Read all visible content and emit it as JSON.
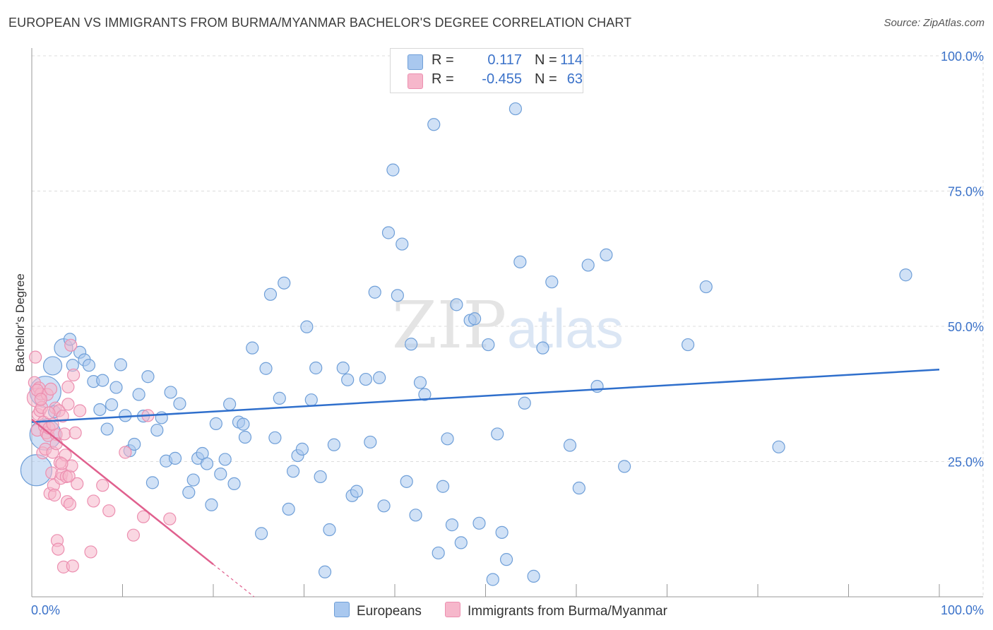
{
  "title": "EUROPEAN VS IMMIGRANTS FROM BURMA/MYANMAR BACHELOR'S DEGREE CORRELATION CHART",
  "source": "Source: ZipAtlas.com",
  "watermark": {
    "part1": "ZIP",
    "part2": "atlas"
  },
  "colors": {
    "blue_fill": "#a9c8ef",
    "blue_stroke": "#6f9fd8",
    "blue_line": "#2f6fcc",
    "pink_fill": "#f6b7cb",
    "pink_stroke": "#ec8fb0",
    "pink_line": "#e0608e",
    "tick_label": "#3b72c9",
    "grid": "#dcdcdc"
  },
  "legend": {
    "rows": [
      {
        "label": "R =",
        "r": "0.117",
        "n_label": "N =",
        "n": "114",
        "color": "blue"
      },
      {
        "label": "R =",
        "r": "-0.455",
        "n_label": "N =",
        "n": "63",
        "color": "pink"
      }
    ]
  },
  "bottom_legend": {
    "series1": "Europeans",
    "series2": "Immigrants from Burma/Myanmar"
  },
  "chart_data": {
    "type": "scatter",
    "title": "EUROPEAN VS IMMIGRANTS FROM BURMA/MYANMAR BACHELOR'S DEGREE CORRELATION CHART",
    "xlabel": "",
    "ylabel": "Bachelor's Degree",
    "xlim": [
      0,
      100
    ],
    "ylim": [
      0,
      100
    ],
    "x_tick_labels": [
      "0.0%",
      "100.0%"
    ],
    "y_tick_labels": [
      "25.0%",
      "50.0%",
      "75.0%",
      "100.0%"
    ],
    "y_ticks": [
      25,
      50,
      75,
      100
    ],
    "grid": true,
    "series": [
      {
        "name": "Europeans",
        "color": "blue",
        "R": 0.117,
        "N": 114,
        "trend": {
          "x": [
            0,
            100
          ],
          "y": [
            32.3,
            42.0
          ]
        },
        "points": [
          [
            0.5,
            23.4,
            3
          ],
          [
            1.5,
            30.0,
            3
          ],
          [
            1.5,
            37.9,
            3
          ],
          [
            2.3,
            42.7,
            2
          ],
          [
            2.5,
            34.2,
            1
          ],
          [
            3.5,
            46.0,
            2
          ],
          [
            4.2,
            47.6,
            1
          ],
          [
            4.5,
            42.8,
            1
          ],
          [
            5.3,
            45.2,
            1
          ],
          [
            5.8,
            43.8,
            1
          ],
          [
            6.3,
            42.8,
            1
          ],
          [
            6.8,
            39.8,
            1
          ],
          [
            7.5,
            34.6,
            1
          ],
          [
            7.8,
            40.0,
            1
          ],
          [
            8.3,
            31.0,
            1
          ],
          [
            8.8,
            35.5,
            1
          ],
          [
            9.3,
            38.7,
            1
          ],
          [
            9.8,
            42.9,
            1
          ],
          [
            10.3,
            33.5,
            1
          ],
          [
            10.8,
            27.0,
            1
          ],
          [
            11.3,
            28.2,
            1
          ],
          [
            11.8,
            37.4,
            1
          ],
          [
            12.3,
            33.4,
            1
          ],
          [
            12.8,
            40.7,
            1
          ],
          [
            13.3,
            21.1,
            1
          ],
          [
            13.8,
            30.8,
            1
          ],
          [
            14.3,
            33.1,
            1
          ],
          [
            14.8,
            25.1,
            1
          ],
          [
            15.3,
            37.8,
            1
          ],
          [
            15.8,
            25.6,
            1
          ],
          [
            16.3,
            35.7,
            1
          ],
          [
            17.3,
            19.3,
            1
          ],
          [
            17.8,
            21.6,
            1
          ],
          [
            18.3,
            25.6,
            1
          ],
          [
            18.8,
            26.5,
            1
          ],
          [
            19.3,
            24.6,
            1
          ],
          [
            19.8,
            17.0,
            1
          ],
          [
            20.3,
            32.0,
            1
          ],
          [
            20.8,
            22.7,
            1
          ],
          [
            21.3,
            25.4,
            1
          ],
          [
            21.8,
            35.6,
            1
          ],
          [
            22.3,
            20.9,
            1
          ],
          [
            22.8,
            32.3,
            1
          ],
          [
            23.3,
            31.9,
            1
          ],
          [
            23.5,
            29.5,
            1
          ],
          [
            24.3,
            46.0,
            1
          ],
          [
            25.3,
            11.7,
            1
          ],
          [
            25.8,
            42.2,
            1
          ],
          [
            26.3,
            55.9,
            1
          ],
          [
            26.8,
            29.4,
            1
          ],
          [
            27.3,
            36.7,
            1
          ],
          [
            27.8,
            58.0,
            1
          ],
          [
            28.3,
            16.2,
            1
          ],
          [
            28.8,
            23.2,
            1
          ],
          [
            29.3,
            26.1,
            1
          ],
          [
            29.8,
            27.3,
            1
          ],
          [
            30.3,
            49.9,
            1
          ],
          [
            30.8,
            36.4,
            1
          ],
          [
            31.3,
            42.3,
            1
          ],
          [
            31.8,
            22.2,
            1
          ],
          [
            32.3,
            4.6,
            1
          ],
          [
            32.8,
            12.4,
            1
          ],
          [
            33.3,
            28.1,
            1
          ],
          [
            34.3,
            42.3,
            1
          ],
          [
            34.8,
            40.1,
            1
          ],
          [
            35.3,
            18.7,
            1
          ],
          [
            35.8,
            19.5,
            1
          ],
          [
            36.8,
            40.2,
            1
          ],
          [
            37.3,
            28.6,
            1
          ],
          [
            37.8,
            56.3,
            1
          ],
          [
            38.3,
            40.5,
            1
          ],
          [
            38.8,
            16.8,
            1
          ],
          [
            39.3,
            67.3,
            1
          ],
          [
            39.8,
            78.9,
            1
          ],
          [
            40.3,
            55.7,
            1
          ],
          [
            40.8,
            65.2,
            1
          ],
          [
            41.3,
            21.3,
            1
          ],
          [
            41.8,
            46.7,
            1
          ],
          [
            42.3,
            15.1,
            1
          ],
          [
            42.8,
            39.6,
            1
          ],
          [
            43.3,
            37.4,
            1
          ],
          [
            44.3,
            87.3,
            1
          ],
          [
            44.8,
            8.1,
            1
          ],
          [
            45.3,
            20.4,
            1
          ],
          [
            45.8,
            29.2,
            1
          ],
          [
            46.3,
            13.3,
            1
          ],
          [
            46.8,
            54.0,
            1
          ],
          [
            47.3,
            10.0,
            1
          ],
          [
            48.3,
            51.1,
            1
          ],
          [
            48.8,
            51.4,
            1
          ],
          [
            49.3,
            13.6,
            1
          ],
          [
            50.3,
            46.6,
            1
          ],
          [
            50.8,
            3.2,
            1
          ],
          [
            51.3,
            30.1,
            1
          ],
          [
            51.8,
            11.9,
            1
          ],
          [
            52.3,
            6.9,
            1
          ],
          [
            53.3,
            90.2,
            1
          ],
          [
            53.8,
            61.9,
            1
          ],
          [
            54.3,
            35.8,
            1
          ],
          [
            55.3,
            3.8,
            1
          ],
          [
            56.3,
            46.0,
            1
          ],
          [
            57.3,
            58.2,
            1
          ],
          [
            59.3,
            28.0,
            1
          ],
          [
            60.3,
            20.1,
            1
          ],
          [
            61.3,
            61.3,
            1
          ],
          [
            62.3,
            38.9,
            1
          ],
          [
            63.3,
            63.2,
            1
          ],
          [
            65.3,
            24.1,
            1
          ],
          [
            72.3,
            46.6,
            1
          ],
          [
            74.3,
            57.3,
            1
          ],
          [
            82.3,
            27.7,
            1
          ],
          [
            96.3,
            59.5,
            1
          ]
        ]
      },
      {
        "name": "Immigrants from Burma/Myanmar",
        "color": "pink",
        "R": -0.455,
        "N": 63,
        "trend": {
          "x": [
            0,
            20
          ],
          "y": [
            32.8,
            6.0
          ],
          "dashed_to": {
            "x": 24.5,
            "y": 0
          }
        },
        "points": [
          [
            0.3,
            39.6,
            1
          ],
          [
            0.4,
            44.3,
            1
          ],
          [
            0.5,
            36.8,
            2
          ],
          [
            0.6,
            30.8,
            1
          ],
          [
            0.7,
            33.7,
            1
          ],
          [
            0.8,
            38.6,
            1
          ],
          [
            0.9,
            34.4,
            1
          ],
          [
            1.0,
            37.5,
            1
          ],
          [
            1.1,
            35.0,
            1
          ],
          [
            1.2,
            26.6,
            1
          ],
          [
            1.3,
            32.3,
            1
          ],
          [
            1.4,
            31.5,
            1
          ],
          [
            1.5,
            27.3,
            1
          ],
          [
            1.6,
            30.3,
            1
          ],
          [
            1.7,
            37.4,
            1
          ],
          [
            1.8,
            29.8,
            1
          ],
          [
            1.9,
            31.2,
            1
          ],
          [
            2.0,
            19.1,
            1
          ],
          [
            2.1,
            38.4,
            1
          ],
          [
            2.2,
            22.9,
            1
          ],
          [
            2.3,
            26.7,
            1
          ],
          [
            2.4,
            20.6,
            1
          ],
          [
            2.5,
            18.8,
            1
          ],
          [
            2.6,
            34.9,
            1
          ],
          [
            2.7,
            30.0,
            1
          ],
          [
            2.8,
            10.4,
            1
          ],
          [
            2.9,
            8.8,
            1
          ],
          [
            3.0,
            34.4,
            1
          ],
          [
            3.1,
            24.8,
            1
          ],
          [
            3.2,
            21.9,
            1
          ],
          [
            3.3,
            22.7,
            1
          ],
          [
            3.4,
            33.4,
            1
          ],
          [
            3.5,
            5.5,
            1
          ],
          [
            3.6,
            30.1,
            1
          ],
          [
            3.7,
            26.2,
            1
          ],
          [
            3.8,
            22.2,
            1
          ],
          [
            3.9,
            17.6,
            1
          ],
          [
            4.0,
            35.6,
            1
          ],
          [
            4.1,
            22.3,
            1
          ],
          [
            4.2,
            17.1,
            1
          ],
          [
            4.3,
            46.5,
            1
          ],
          [
            4.4,
            24.2,
            1
          ],
          [
            4.5,
            5.7,
            1
          ],
          [
            4.6,
            41.0,
            1
          ],
          [
            4.8,
            30.3,
            1
          ],
          [
            5.0,
            20.9,
            1
          ],
          [
            5.3,
            34.4,
            1
          ],
          [
            6.5,
            8.3,
            1
          ],
          [
            6.8,
            17.7,
            1
          ],
          [
            7.8,
            20.6,
            1
          ],
          [
            8.5,
            15.9,
            1
          ],
          [
            10.3,
            26.7,
            1
          ],
          [
            11.2,
            11.4,
            1
          ],
          [
            12.3,
            14.8,
            1
          ],
          [
            12.8,
            33.5,
            1
          ],
          [
            15.2,
            14.4,
            1
          ],
          [
            4.0,
            38.8,
            1
          ],
          [
            1.9,
            34.0,
            1
          ],
          [
            2.3,
            31.9,
            1
          ],
          [
            0.6,
            38.2,
            1
          ],
          [
            3.3,
            24.6,
            1
          ],
          [
            2.7,
            28.3,
            1
          ],
          [
            1.0,
            36.5,
            1
          ]
        ]
      }
    ]
  }
}
